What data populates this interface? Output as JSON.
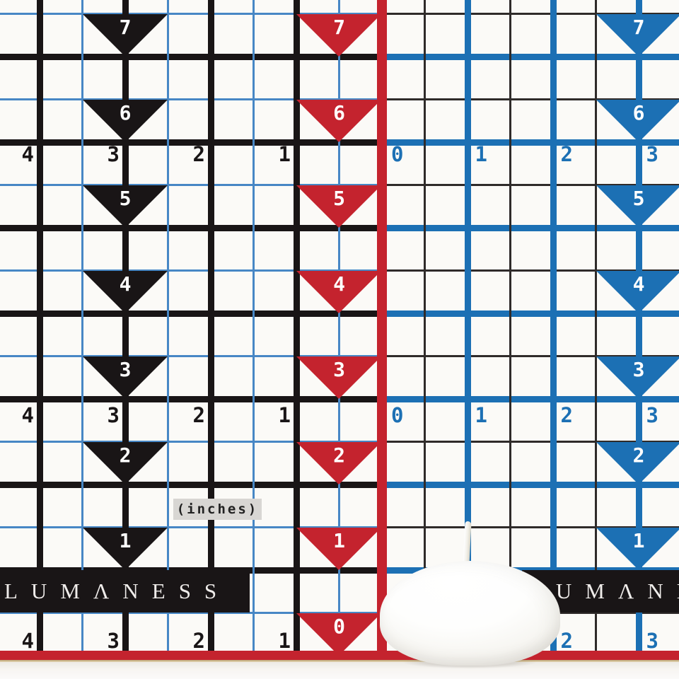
{
  "brand": {
    "wordmark": "LUMΛNESS"
  },
  "units_label": "(inches)",
  "ruler_rows": {
    "left_labels": [
      "4",
      "3",
      "2",
      "1"
    ],
    "right_labels": [
      "0",
      "1",
      "2",
      "3"
    ],
    "row_count": 3
  },
  "marker_columns": [
    {
      "name": "black",
      "labels": [
        "7",
        "6",
        "5",
        "4",
        "3",
        "2",
        "1"
      ]
    },
    {
      "name": "red",
      "labels": [
        "7",
        "6",
        "5",
        "4",
        "3",
        "2",
        "1",
        "0"
      ]
    },
    {
      "name": "blue",
      "labels": [
        "7",
        "6",
        "5",
        "4",
        "3",
        "2",
        "1"
      ]
    }
  ],
  "colors": {
    "red": "#c4232e",
    "blue": "#1c70b4",
    "blue_minor": "#4787c5",
    "black": "#191516",
    "gray_minor": "#2f2b2a",
    "mat": "#fbfaf7",
    "label_bg": "#d8d6d3",
    "banner_text": "#efecea",
    "number_white": "#ffffff",
    "backdrop": "#f3f1ed",
    "mat_edge": "#b79d6e"
  }
}
